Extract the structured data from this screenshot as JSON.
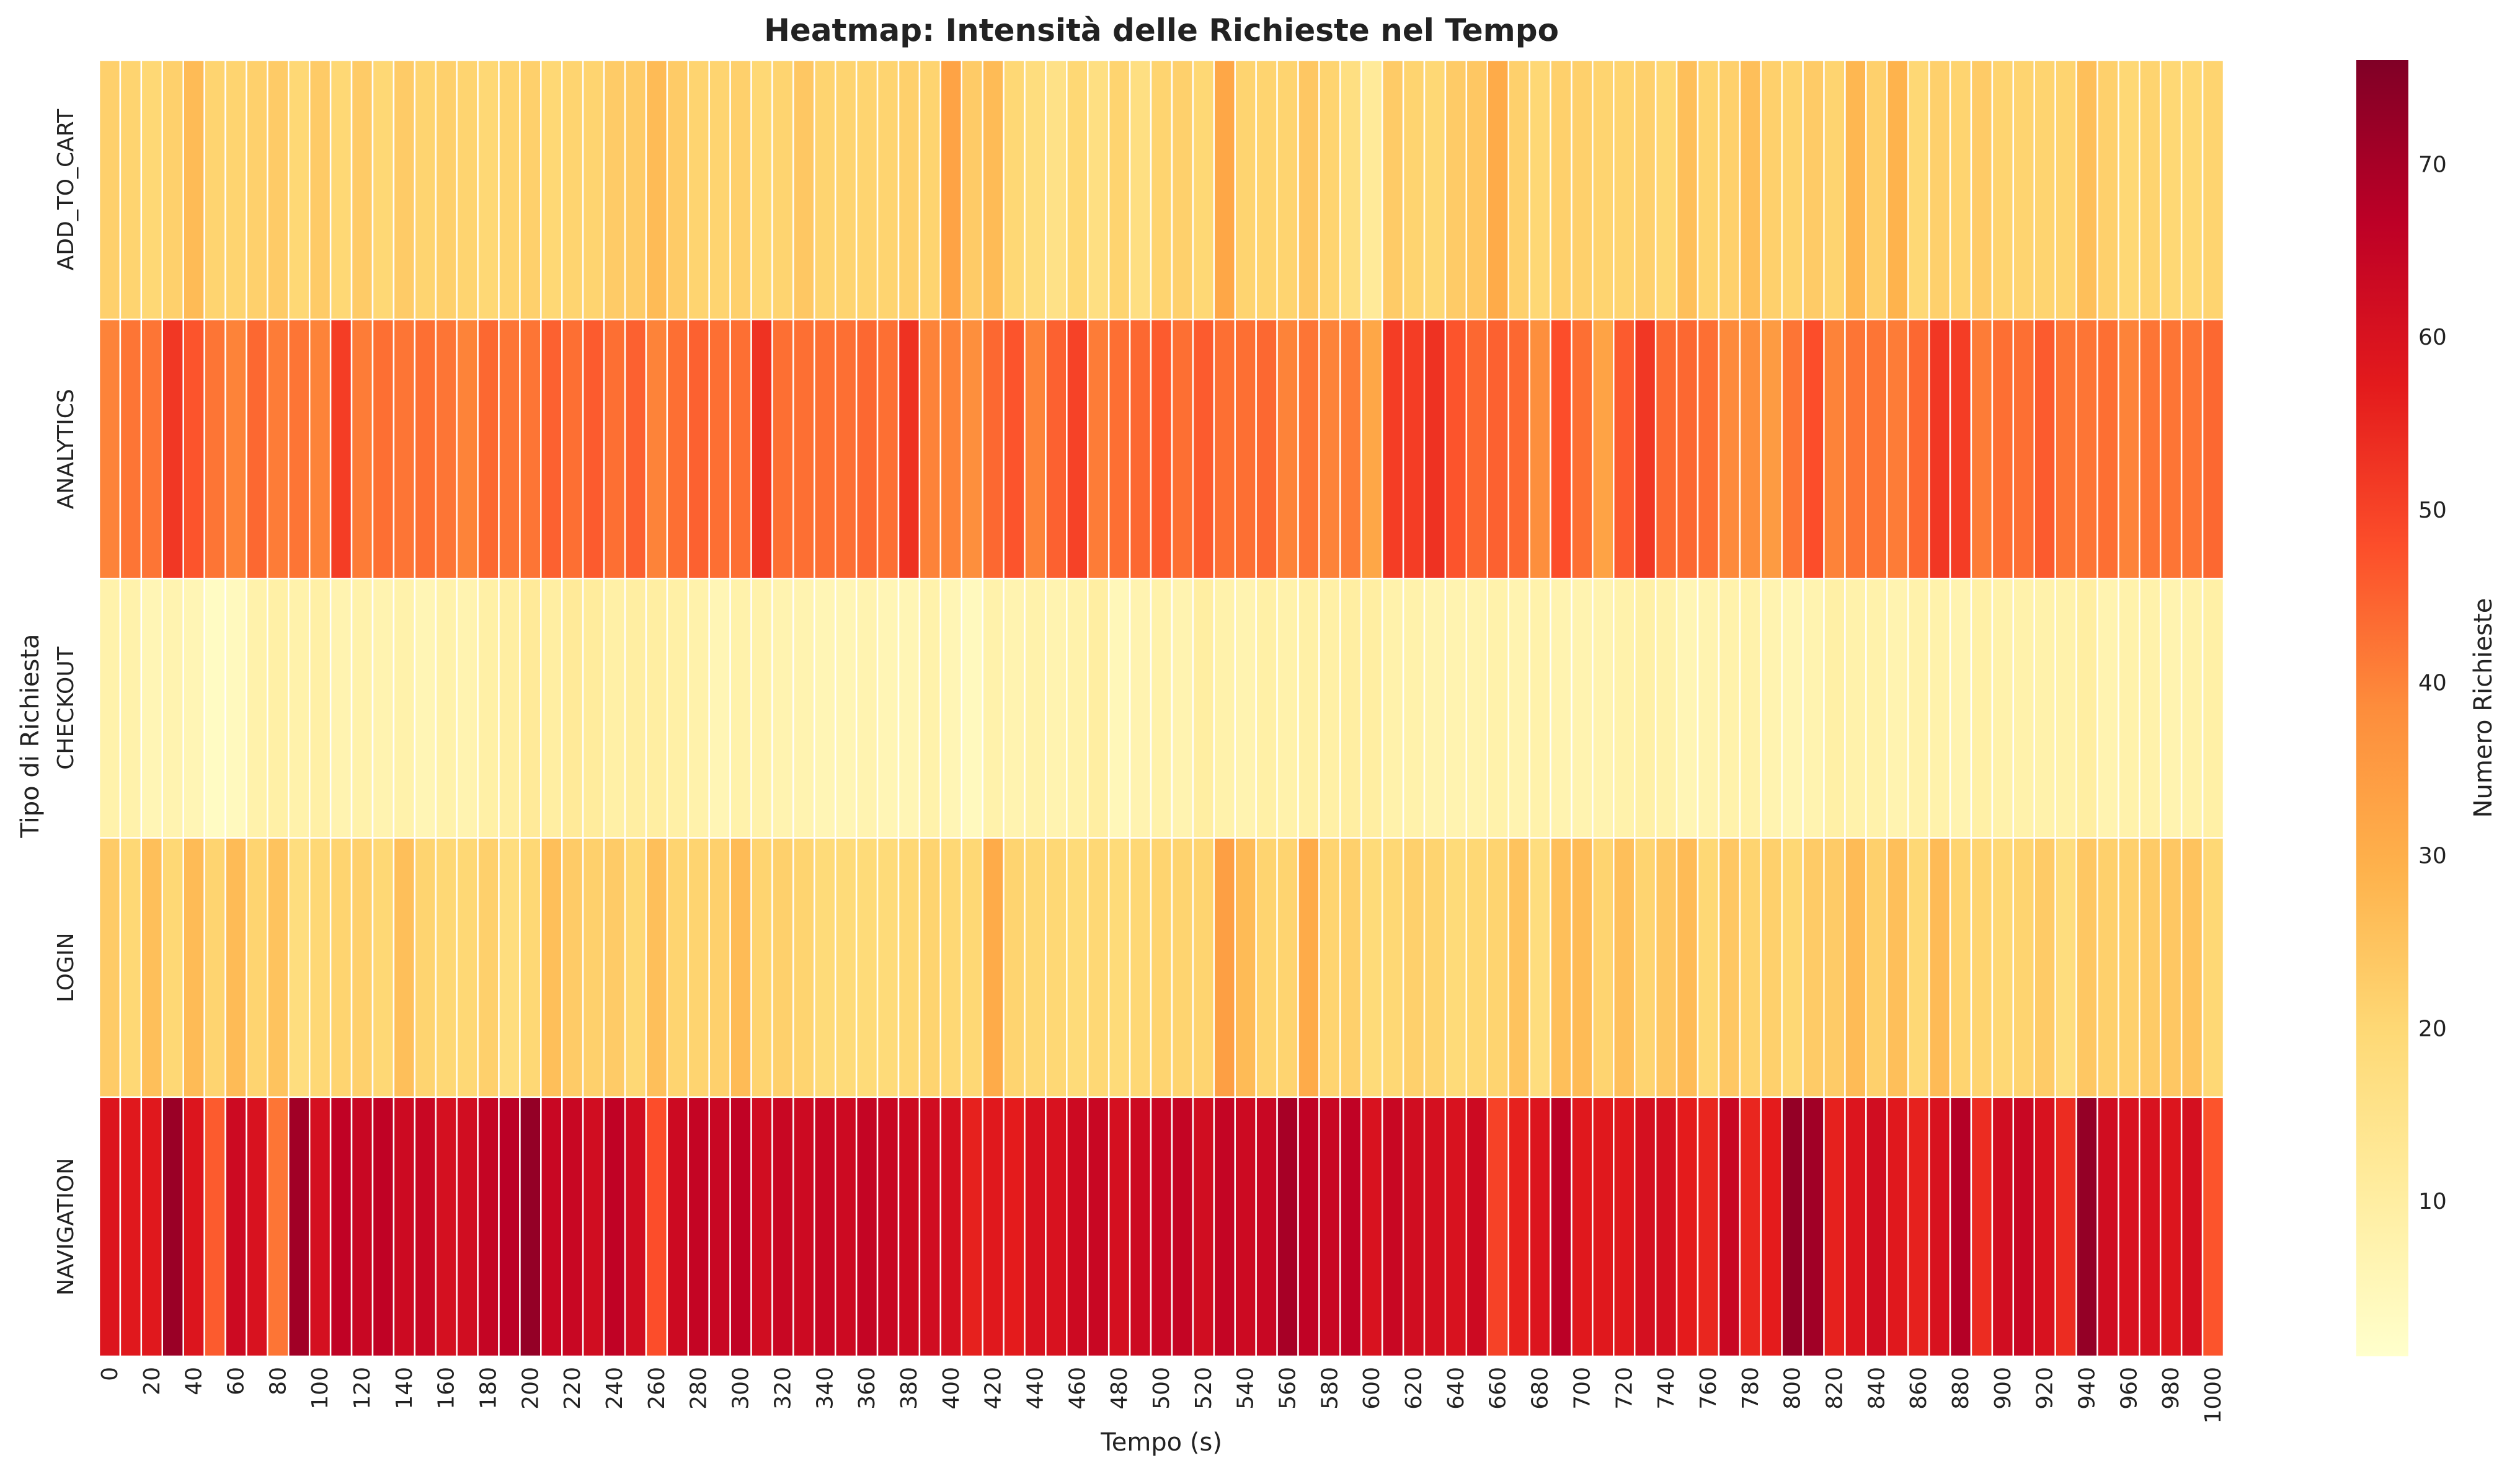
{
  "chart_data": {
    "type": "heatmap",
    "title": "Heatmap: Intensità delle Richieste nel Tempo",
    "xlabel": "Tempo (s)",
    "ylabel": "Tipo di Richiesta",
    "colorbar_label": "Numero Richieste",
    "colormap": "YlOrRd",
    "color_range": [
      1,
      76
    ],
    "colorbar_ticks": [
      10,
      20,
      30,
      40,
      50,
      60,
      70
    ],
    "rows": [
      "ADD_TO_CART",
      "ANALYTICS",
      "CHECKOUT",
      "LOGIN",
      "NAVIGATION"
    ],
    "x_start": 0,
    "x_step": 10,
    "x_tick_every": 2,
    "values": [
      [
        22,
        21,
        20,
        22,
        27,
        21,
        21,
        22,
        23,
        20,
        23,
        20,
        23,
        20,
        23,
        21,
        22,
        21,
        20,
        21,
        22,
        20,
        21,
        21,
        23,
        23,
        27,
        23,
        21,
        21,
        22,
        20,
        21,
        24,
        21,
        21,
        21,
        21,
        22,
        21,
        33,
        23,
        27,
        20,
        18,
        16,
        20,
        17,
        21,
        17,
        21,
        22,
        20,
        32,
        21,
        21,
        21,
        24,
        21,
        17,
        12,
        23,
        21,
        20,
        23,
        24,
        31,
        22,
        20,
        22,
        22,
        21,
        21,
        22,
        20,
        26,
        21,
        22,
        26,
        22,
        21,
        23,
        21,
        28,
        22,
        29,
        20,
        22,
        21,
        23,
        21,
        21,
        21,
        21,
        26,
        22,
        20,
        21,
        20,
        20,
        21
      ],
      [
        40,
        42,
        42,
        52,
        47,
        42,
        40,
        44,
        41,
        42,
        40,
        51,
        41,
        43,
        42,
        43,
        42,
        40,
        44,
        42,
        42,
        45,
        43,
        46,
        43,
        45,
        40,
        43,
        45,
        43,
        43,
        53,
        43,
        43,
        43,
        43,
        44,
        43,
        53,
        40,
        40,
        38,
        44,
        47,
        40,
        45,
        50,
        41,
        43,
        44,
        46,
        43,
        46,
        43,
        43,
        44,
        40,
        42,
        40,
        41,
        32,
        51,
        51,
        53,
        47,
        44,
        45,
        44,
        38,
        48,
        43,
        33,
        46,
        52,
        44,
        44,
        43,
        39,
        38,
        35,
        42,
        48,
        40,
        42,
        42,
        41,
        44,
        52,
        51,
        41,
        43,
        43,
        46,
        42,
        42,
        43,
        40,
        42,
        42,
        42,
        44
      ],
      [
        8,
        8,
        6,
        7,
        6,
        3,
        4,
        8,
        9,
        8,
        9,
        7,
        8,
        7,
        8,
        6,
        8,
        7,
        9,
        10,
        12,
        10,
        12,
        11,
        9,
        10,
        10,
        9,
        8,
        6,
        8,
        8,
        7,
        7,
        6,
        6,
        7,
        6,
        6,
        8,
        6,
        4,
        8,
        7,
        8,
        7,
        8,
        10,
        5,
        7,
        8,
        7,
        10,
        8,
        7,
        9,
        8,
        9,
        9,
        10,
        10,
        8,
        8,
        7,
        7,
        7,
        8,
        7,
        8,
        7,
        7,
        7,
        8,
        9,
        8,
        6,
        7,
        8,
        8,
        7,
        6,
        7,
        9,
        8,
        8,
        7,
        8,
        8,
        7,
        9,
        8,
        8,
        8,
        8,
        10,
        7,
        8,
        8,
        7,
        8,
        9
      ],
      [
        23,
        20,
        26,
        20,
        27,
        21,
        27,
        21,
        25,
        18,
        20,
        21,
        22,
        20,
        26,
        21,
        20,
        20,
        22,
        18,
        20,
        26,
        23,
        22,
        23,
        20,
        26,
        21,
        21,
        22,
        27,
        21,
        22,
        21,
        19,
        19,
        19,
        19,
        20,
        21,
        20,
        20,
        31,
        21,
        20,
        20,
        19,
        20,
        19,
        20,
        21,
        21,
        21,
        34,
        27,
        21,
        21,
        31,
        21,
        22,
        19,
        20,
        22,
        21,
        19,
        20,
        21,
        25,
        18,
        26,
        27,
        21,
        26,
        21,
        24,
        27,
        20,
        24,
        21,
        22,
        20,
        23,
        23,
        27,
        22,
        26,
        20,
        27,
        21,
        21,
        20,
        21,
        23,
        18,
        24,
        22,
        22,
        23,
        24,
        25,
        20
      ],
      [
        59,
        58,
        58,
        72,
        59,
        46,
        63,
        60,
        42,
        71,
        61,
        66,
        64,
        66,
        63,
        64,
        61,
        62,
        65,
        67,
        73,
        64,
        64,
        62,
        66,
        62,
        48,
        63,
        65,
        64,
        66,
        62,
        64,
        63,
        64,
        63,
        65,
        64,
        63,
        62,
        61,
        56,
        58,
        57,
        60,
        60,
        63,
        64,
        61,
        63,
        64,
        65,
        62,
        65,
        63,
        64,
        70,
        66,
        64,
        66,
        60,
        64,
        62,
        61,
        60,
        63,
        50,
        56,
        59,
        67,
        58,
        58,
        58,
        61,
        61,
        57,
        55,
        64,
        55,
        57,
        73,
        71,
        56,
        59,
        62,
        58,
        56,
        60,
        68,
        54,
        62,
        64,
        60,
        54,
        73,
        62,
        60,
        60,
        59,
        61,
        47
      ]
    ]
  }
}
